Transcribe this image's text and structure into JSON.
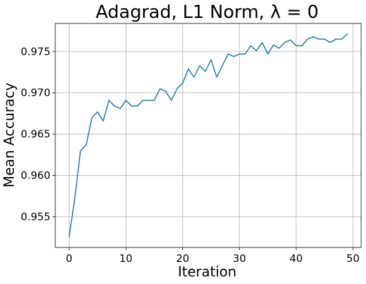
{
  "chart_data": {
    "type": "line",
    "title": "Adagrad, L1 Norm, λ = 0",
    "xlabel": "Iteration",
    "ylabel": "Mean Accuracy",
    "xlim": [
      -2.45,
      51.45
    ],
    "ylim": [
      0.9513,
      0.9784
    ],
    "xticks": [
      0,
      10,
      20,
      30,
      40,
      50
    ],
    "yticks": [
      0.955,
      0.96,
      0.965,
      0.97,
      0.975
    ],
    "xtick_labels": [
      "0",
      "10",
      "20",
      "30",
      "40",
      "50"
    ],
    "ytick_labels": [
      "0.955",
      "0.960",
      "0.965",
      "0.970",
      "0.975"
    ],
    "grid": true,
    "series": [
      {
        "color": "#1f77b4",
        "x": [
          0,
          1,
          2,
          3,
          4,
          5,
          6,
          7,
          8,
          9,
          10,
          11,
          12,
          13,
          14,
          15,
          16,
          17,
          18,
          19,
          20,
          21,
          22,
          23,
          24,
          25,
          26,
          27,
          28,
          29,
          30,
          31,
          32,
          33,
          34,
          35,
          36,
          37,
          38,
          39,
          40,
          41,
          42,
          43,
          44,
          45,
          46,
          47,
          48,
          49
        ],
        "y": [
          0.9526,
          0.9573,
          0.963,
          0.9637,
          0.967,
          0.9677,
          0.9666,
          0.9691,
          0.9684,
          0.9681,
          0.9691,
          0.9684,
          0.9684,
          0.9691,
          0.9691,
          0.9691,
          0.9705,
          0.9702,
          0.9691,
          0.9705,
          0.9712,
          0.9729,
          0.9719,
          0.9733,
          0.9726,
          0.974,
          0.9719,
          0.9733,
          0.9747,
          0.9744,
          0.9747,
          0.9747,
          0.9757,
          0.9751,
          0.9761,
          0.9747,
          0.9758,
          0.9754,
          0.9761,
          0.9764,
          0.9757,
          0.9757,
          0.9765,
          0.9768,
          0.9765,
          0.9765,
          0.9761,
          0.9765,
          0.9765,
          0.9771
        ]
      }
    ]
  }
}
